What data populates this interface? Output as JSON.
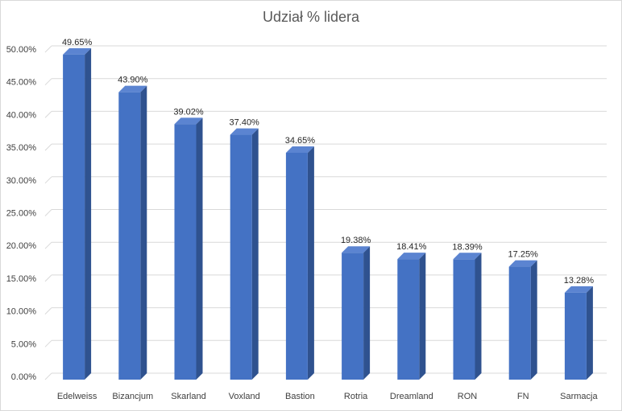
{
  "chart_data": {
    "type": "bar",
    "title": "Udział % lidera",
    "categories": [
      "Edelweiss",
      "Bizancjum",
      "Skarland",
      "Voxland",
      "Bastion",
      "Rotria",
      "Dreamland",
      "RON",
      "FN",
      "Sarmacja"
    ],
    "values": [
      49.65,
      43.9,
      39.02,
      37.4,
      34.65,
      19.38,
      18.41,
      18.39,
      17.25,
      13.28
    ],
    "data_labels": [
      "49.65%",
      "43.90%",
      "39.02%",
      "37.40%",
      "34.65%",
      "19.38%",
      "18.41%",
      "18.39%",
      "17.25%",
      "13.28%"
    ],
    "y_ticks": [
      0,
      5,
      10,
      15,
      20,
      25,
      30,
      35,
      40,
      45,
      50
    ],
    "y_tick_labels": [
      "0.00%",
      "5.00%",
      "10.00%",
      "15.00%",
      "20.00%",
      "25.00%",
      "30.00%",
      "35.00%",
      "40.00%",
      "45.00%",
      "50.00%"
    ],
    "ylim": [
      0,
      50
    ],
    "grid": true,
    "legend": "none",
    "bar_style": "3d-column",
    "colors": {
      "bar_front": "#4472c4",
      "bar_side": "#2f528f",
      "bar_top": "#5b84d1",
      "gridline": "#d9d9d9"
    }
  }
}
